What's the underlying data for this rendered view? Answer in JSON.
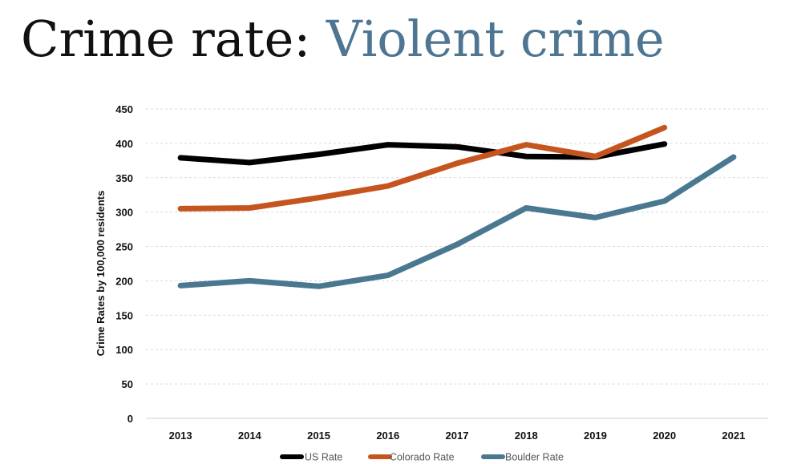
{
  "title": {
    "prefix": "Crime rate",
    "separator": ":",
    "accent": "Violent crime",
    "accent_color": "#4e7591"
  },
  "chart_data": {
    "type": "line",
    "title": "",
    "xlabel": "",
    "ylabel": "Crime Rates by 100,000 residents",
    "categories": [
      "2013",
      "2014",
      "2015",
      "2016",
      "2017",
      "2018",
      "2019",
      "2020",
      "2021"
    ],
    "ylim": [
      0,
      450
    ],
    "yticks": [
      0,
      50,
      100,
      150,
      200,
      250,
      300,
      350,
      400,
      450
    ],
    "grid": true,
    "legend_position": "bottom",
    "series": [
      {
        "name": "US Rate",
        "color": "#000000",
        "values": [
          379,
          372,
          384,
          398,
          395,
          381,
          380,
          399,
          null
        ]
      },
      {
        "name": "Colorado Rate",
        "color": "#c5541f",
        "values": [
          305,
          306,
          321,
          338,
          371,
          398,
          381,
          423,
          null
        ]
      },
      {
        "name": "Boulder Rate",
        "color": "#4a7891",
        "values": [
          193,
          200,
          192,
          208,
          253,
          306,
          292,
          316,
          380
        ]
      }
    ]
  }
}
